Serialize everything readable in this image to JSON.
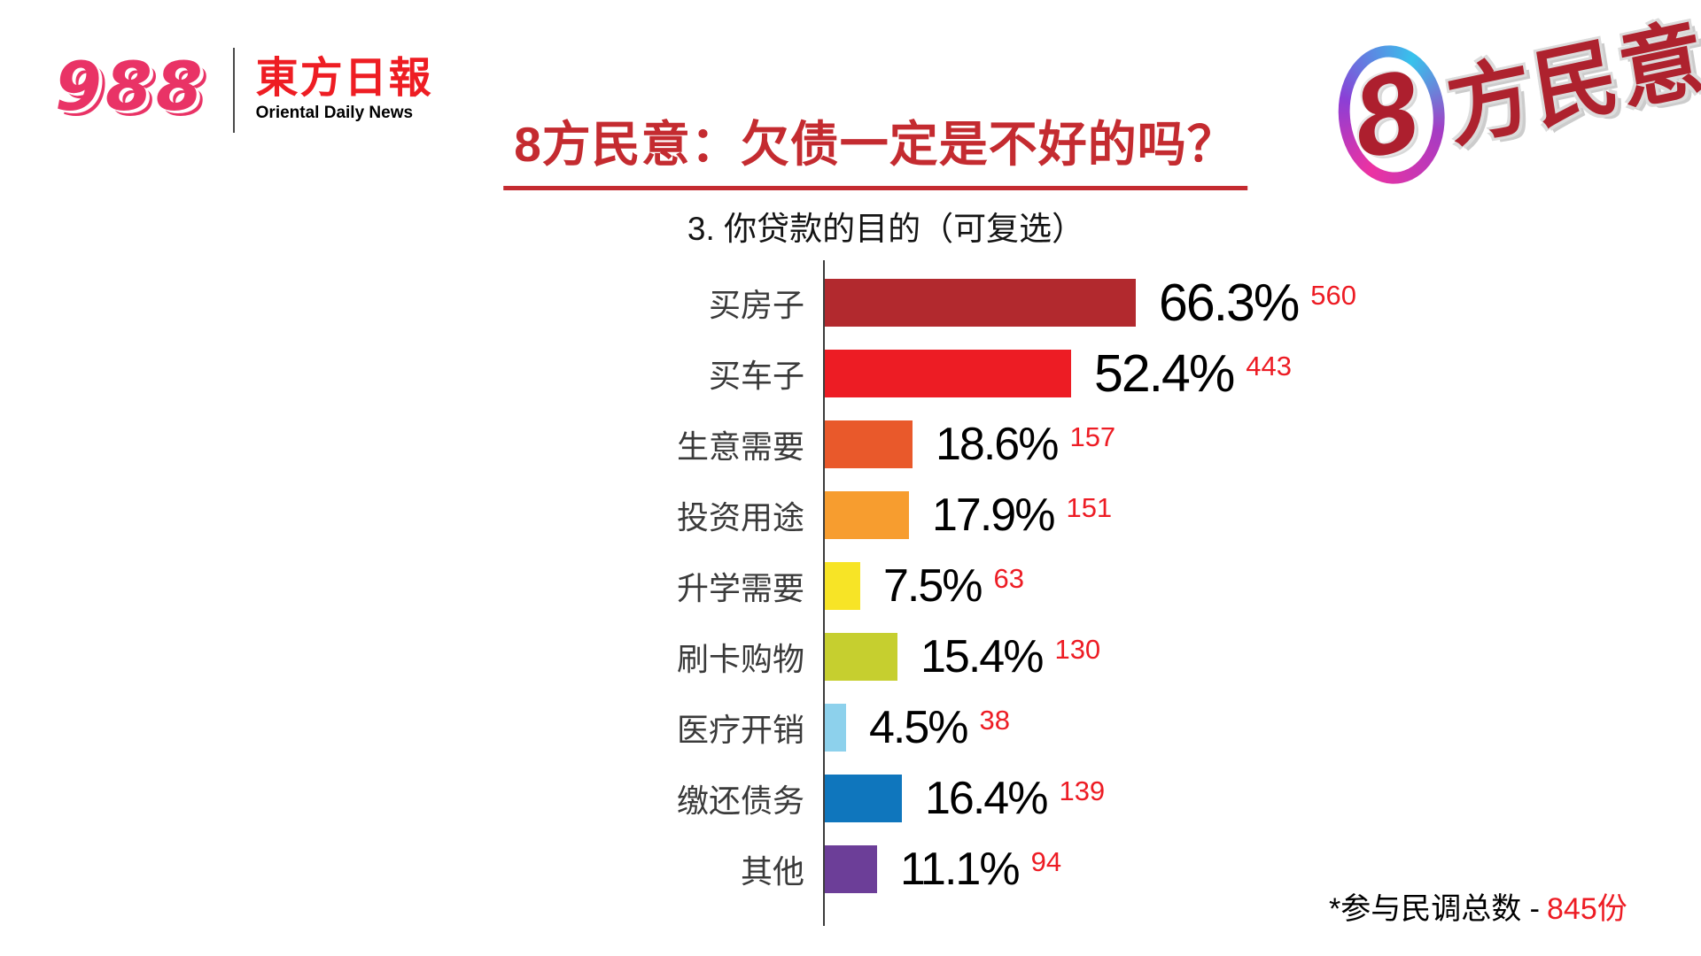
{
  "header": {
    "station_logo": "988",
    "newspaper_cn": "東方日報",
    "newspaper_en": "Oriental Daily News"
  },
  "badge": {
    "number": "8",
    "text": "方民意"
  },
  "title": "8方民意：欠债一定是不好的吗？",
  "footnote": {
    "label": "*参与民调总数 -",
    "value": "845份"
  },
  "chart_data": {
    "type": "bar",
    "orientation": "horizontal",
    "title": "3. 你贷款的目的（可复选）",
    "categories": [
      "买房子",
      "买车子",
      "生意需要",
      "投资用途",
      "升学需要",
      "刷卡购物",
      "医疗开销",
      "缴还债务",
      "其他"
    ],
    "series": [
      {
        "name": "percentage",
        "unit": "%",
        "values": [
          66.3,
          52.4,
          18.6,
          17.9,
          7.5,
          15.4,
          4.5,
          16.4,
          11.1
        ]
      },
      {
        "name": "responses",
        "values": [
          560,
          443,
          157,
          151,
          63,
          130,
          38,
          139,
          94
        ]
      }
    ],
    "value_labels": [
      "66.3%",
      "52.4%",
      "18.6%",
      "17.9%",
      "7.5%",
      "15.4%",
      "4.5%",
      "16.4%",
      "11.1%"
    ],
    "bar_colors": [
      "#b2292e",
      "#ed1c24",
      "#e9592b",
      "#f79d2f",
      "#f7e426",
      "#c6cf2f",
      "#8dd1ec",
      "#0f76bd",
      "#6c3e98"
    ],
    "xlim": [
      0,
      70
    ],
    "legend": "none",
    "grid": "off",
    "percent_label_color": "#000000",
    "count_label_color": "#ed1c24",
    "total_responses": "845份"
  }
}
